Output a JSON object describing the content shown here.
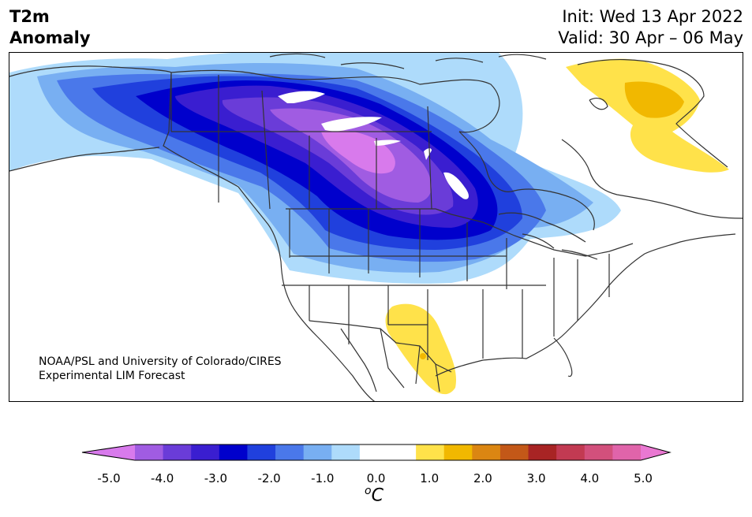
{
  "title": {
    "line1": "T2m",
    "line2": "Anomaly"
  },
  "dates": {
    "init": "Init: Wed 13 Apr 2022",
    "valid": "Valid: 30 Apr – 06 May"
  },
  "credit": {
    "line1": "NOAA/PSL and University of Colorado/CIRES",
    "line2": "Experimental LIM Forecast"
  },
  "colorbar": {
    "ticks": [
      "-5.0",
      "-4.0",
      "-3.0",
      "-2.0",
      "-1.0",
      "0.0",
      "1.0",
      "2.0",
      "3.0",
      "4.0",
      "5.0"
    ],
    "units_base": "o",
    "units_letter": "C",
    "colors": [
      "#d87aec",
      "#a05ce2",
      "#6a3cd8",
      "#3a1ed0",
      "#0000cc",
      "#2040dd",
      "#4a78ea",
      "#78aff2",
      "#aedbfb",
      "#ffffff",
      "#ffffff",
      "#ffe24a",
      "#f1b800",
      "#db8612",
      "#c35818",
      "#a82424",
      "#c23a52",
      "#d2507c",
      "#e064aa",
      "#ea78d2"
    ]
  },
  "colors": {
    "purple_light": "#d87aec",
    "purple": "#a05ce2",
    "violet": "#6a3cd8",
    "indigo": "#3a1ed0",
    "blue_dark": "#0000cc",
    "blue": "#2040dd",
    "blue_mid": "#4a78ea",
    "blue_light": "#78aff2",
    "blue_pale": "#aedbfb",
    "yellow": "#ffe24a",
    "gold": "#f1b800"
  }
}
